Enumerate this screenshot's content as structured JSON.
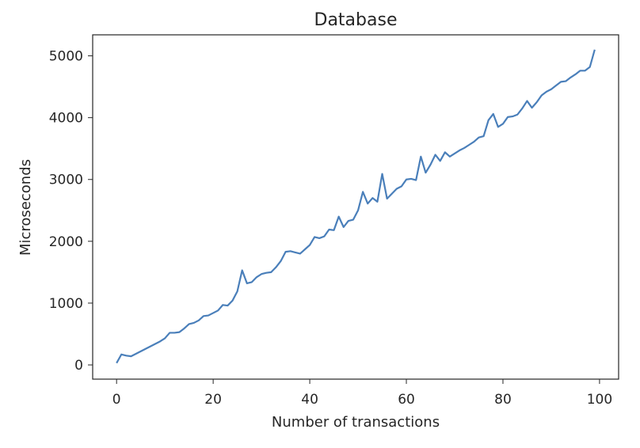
{
  "chart_data": {
    "type": "line",
    "title": "Database",
    "xlabel": "Number of transactions",
    "ylabel": "Microseconds",
    "xlim": [
      -4.95,
      103.95
    ],
    "ylim": [
      -230,
      5340
    ],
    "xticks": [
      0,
      20,
      40,
      60,
      80,
      100
    ],
    "yticks": [
      0,
      1000,
      2000,
      3000,
      4000,
      5000
    ],
    "grid": false,
    "line_color": "#4a7fba",
    "series": [
      {
        "name": "",
        "x": [
          0,
          1,
          2,
          3,
          4,
          5,
          6,
          7,
          8,
          9,
          10,
          11,
          12,
          13,
          14,
          15,
          16,
          17,
          18,
          19,
          20,
          21,
          22,
          23,
          24,
          25,
          26,
          27,
          28,
          29,
          30,
          31,
          32,
          33,
          34,
          35,
          36,
          37,
          38,
          39,
          40,
          41,
          42,
          43,
          44,
          45,
          46,
          47,
          48,
          49,
          50,
          51,
          52,
          53,
          54,
          55,
          56,
          57,
          58,
          59,
          60,
          61,
          62,
          63,
          64,
          65,
          66,
          67,
          68,
          69,
          70,
          71,
          72,
          73,
          74,
          75,
          76,
          77,
          78,
          79,
          80,
          81,
          82,
          83,
          84,
          85,
          86,
          87,
          88,
          89,
          90,
          91,
          92,
          93,
          94,
          95,
          96,
          97,
          98,
          99
        ],
        "y": [
          30,
          170,
          150,
          140,
          180,
          220,
          260,
          300,
          340,
          380,
          430,
          520,
          520,
          530,
          590,
          660,
          680,
          720,
          790,
          800,
          840,
          880,
          970,
          960,
          1040,
          1190,
          1530,
          1320,
          1340,
          1420,
          1470,
          1490,
          1500,
          1580,
          1680,
          1830,
          1840,
          1820,
          1800,
          1870,
          1940,
          2070,
          2050,
          2080,
          2190,
          2180,
          2400,
          2230,
          2330,
          2350,
          2500,
          2800,
          2610,
          2700,
          2640,
          3090,
          2690,
          2770,
          2850,
          2890,
          3000,
          3010,
          2990,
          3370,
          3110,
          3240,
          3400,
          3300,
          3440,
          3370,
          3420,
          3470,
          3510,
          3560,
          3610,
          3680,
          3700,
          3960,
          4060,
          3850,
          3900,
          4010,
          4020,
          4050,
          4150,
          4270,
          4160,
          4250,
          4360,
          4420,
          4460,
          4520,
          4580,
          4590,
          4650,
          4700,
          4760,
          4760,
          4820,
          5100
        ]
      }
    ]
  }
}
